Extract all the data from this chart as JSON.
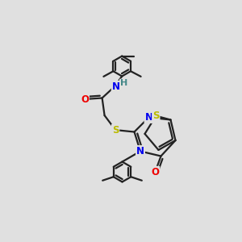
{
  "bg_color": "#e0e0e0",
  "bond_color": "#222222",
  "bond_width": 1.6,
  "atom_colors": {
    "N": "#0000ee",
    "O": "#ee0000",
    "S": "#bbbb00",
    "H": "#448888"
  },
  "font_size": 8.5
}
